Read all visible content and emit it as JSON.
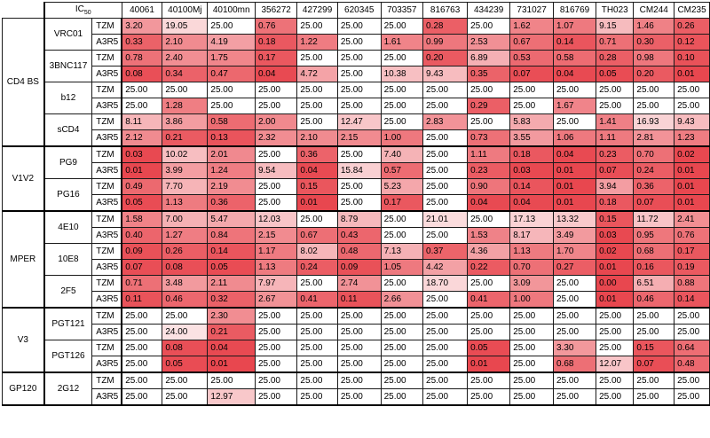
{
  "header": {
    "ic_label": "IC",
    "ic_sub": "50",
    "columns": [
      "40061",
      "40100Mj",
      "40100mn",
      "356272",
      "427299",
      "620345",
      "703357",
      "816763",
      "434239",
      "731027",
      "816769",
      "TH023",
      "CM244",
      "CM235"
    ]
  },
  "colors": {
    "low": "#e8474f",
    "high": "#ffffff",
    "max_value": 25.0
  },
  "groups": [
    {
      "name": "CD4 BS",
      "mabs": [
        {
          "name": "VRC01",
          "rows": [
            {
              "strain": "TZM",
              "values": [
                "3.20",
                "19.05",
                "25.00",
                "0.76",
                "25.00",
                "25.00",
                "25.00",
                "0.28",
                "25.00",
                "1.62",
                "1.07",
                "9.15",
                "1.46",
                "0.26"
              ]
            },
            {
              "strain": "A3R5",
              "values": [
                "0.33",
                "2.10",
                "4.19",
                "0.18",
                "1.22",
                "25.00",
                "1.61",
                "0.99",
                "2.53",
                "0.67",
                "0.14",
                "0.71",
                "0.30",
                "0.12"
              ]
            }
          ]
        },
        {
          "name": "3BNC117",
          "rows": [
            {
              "strain": "TZM",
              "values": [
                "0.78",
                "2.40",
                "1.75",
                "0.17",
                "25.00",
                "25.00",
                "25.00",
                "0.20",
                "6.89",
                "0.53",
                "0.58",
                "0.28",
                "0.98",
                "0.10"
              ]
            },
            {
              "strain": "A3R5",
              "values": [
                "0.08",
                "0.34",
                "0.47",
                "0.04",
                "4.72",
                "25.00",
                "10.38",
                "9.43",
                "0.35",
                "0.07",
                "0.04",
                "0.05",
                "0.20",
                "0.01"
              ]
            }
          ]
        },
        {
          "name": "b12",
          "rows": [
            {
              "strain": "TZM",
              "values": [
                "25.00",
                "25.00",
                "25.00",
                "25.00",
                "25.00",
                "25.00",
                "25.00",
                "25.00",
                "25.00",
                "25.00",
                "25.00",
                "25.00",
                "25.00",
                "25.00"
              ]
            },
            {
              "strain": "A3R5",
              "values": [
                "25.00",
                "1.28",
                "25.00",
                "25.00",
                "25.00",
                "25.00",
                "25.00",
                "25.00",
                "0.29",
                "25.00",
                "1.67",
                "25.00",
                "25.00",
                "25.00"
              ]
            }
          ]
        },
        {
          "name": "sCD4",
          "rows": [
            {
              "strain": "TZM",
              "values": [
                "8.11",
                "3.86",
                "0.58",
                "2.00",
                "25.00",
                "12.47",
                "25.00",
                "2.83",
                "25.00",
                "5.83",
                "25.00",
                "1.41",
                "16.93",
                "9.43"
              ]
            },
            {
              "strain": "A3R5",
              "values": [
                "2.12",
                "0.21",
                "0.13",
                "2.32",
                "2.10",
                "2.15",
                "1.00",
                "25.00",
                "0.73",
                "3.55",
                "1.06",
                "1.11",
                "2.81",
                "1.23"
              ]
            }
          ]
        }
      ]
    },
    {
      "name": "V1V2",
      "mabs": [
        {
          "name": "PG9",
          "rows": [
            {
              "strain": "TZM",
              "values": [
                "0.03",
                "10.02",
                "2.01",
                "25.00",
                "0.36",
                "25.00",
                "7.40",
                "25.00",
                "1.11",
                "0.18",
                "0.04",
                "0.23",
                "0.70",
                "0.02"
              ]
            },
            {
              "strain": "A3R5",
              "values": [
                "0.01",
                "3.99",
                "1.24",
                "9.54",
                "0.04",
                "15.84",
                "0.57",
                "25.00",
                "0.23",
                "0.03",
                "0.01",
                "0.07",
                "0.24",
                "0.01"
              ]
            }
          ]
        },
        {
          "name": "PG16",
          "rows": [
            {
              "strain": "TZM",
              "values": [
                "0.49",
                "7.70",
                "2.19",
                "25.00",
                "0.15",
                "25.00",
                "5.23",
                "25.00",
                "0.90",
                "0.14",
                "0.01",
                "3.94",
                "0.36",
                "0.01"
              ]
            },
            {
              "strain": "A3R5",
              "values": [
                "0.05",
                "1.13",
                "0.36",
                "25.00",
                "0.01",
                "25.00",
                "0.17",
                "25.00",
                "0.04",
                "0.04",
                "0.01",
                "0.18",
                "0.07",
                "0.01"
              ]
            }
          ]
        }
      ]
    },
    {
      "name": "MPER",
      "mabs": [
        {
          "name": "4E10",
          "rows": [
            {
              "strain": "TZM",
              "values": [
                "1.58",
                "7.00",
                "5.47",
                "12.03",
                "25.00",
                "8.79",
                "25.00",
                "21.01",
                "25.00",
                "17.13",
                "13.32",
                "0.15",
                "11.72",
                "2.41"
              ]
            },
            {
              "strain": "A3R5",
              "values": [
                "0.40",
                "1.27",
                "0.84",
                "2.15",
                "0.67",
                "0.43",
                "25.00",
                "25.00",
                "1.53",
                "8.17",
                "3.49",
                "0.03",
                "0.95",
                "0.76"
              ]
            }
          ]
        },
        {
          "name": "10E8",
          "rows": [
            {
              "strain": "TZM",
              "values": [
                "0.09",
                "0.26",
                "0.14",
                "1.17",
                "8.02",
                "0.48",
                "7.13",
                "0.37",
                "4.36",
                "1.13",
                "1.70",
                "0.02",
                "0.68",
                "0.17"
              ]
            },
            {
              "strain": "A3R5",
              "values": [
                "0.07",
                "0.08",
                "0.05",
                "1.13",
                "0.24",
                "0.09",
                "1.05",
                "4.42",
                "0.22",
                "0.70",
                "0.27",
                "0.01",
                "0.16",
                "0.19"
              ]
            }
          ]
        },
        {
          "name": "2F5",
          "rows": [
            {
              "strain": "TZM",
              "values": [
                "0.71",
                "3.48",
                "2.11",
                "7.97",
                "25.00",
                "2.74",
                "25.00",
                "18.70",
                "25.00",
                "3.09",
                "25.00",
                "0.00",
                "6.51",
                "0.88"
              ]
            },
            {
              "strain": "A3R5",
              "values": [
                "0.11",
                "0.46",
                "0.32",
                "2.67",
                "0.41",
                "0.11",
                "2.66",
                "25.00",
                "0.41",
                "1.00",
                "25.00",
                "0.01",
                "0.46",
                "0.14"
              ]
            }
          ]
        }
      ]
    },
    {
      "name": "V3",
      "mabs": [
        {
          "name": "PGT121",
          "rows": [
            {
              "strain": "TZM",
              "values": [
                "25.00",
                "25.00",
                "2.30",
                "25.00",
                "25.00",
                "25.00",
                "25.00",
                "25.00",
                "25.00",
                "25.00",
                "25.00",
                "25.00",
                "25.00",
                "25.00"
              ]
            },
            {
              "strain": "A3R5",
              "values": [
                "25.00",
                "24.00",
                "0.21",
                "25.00",
                "25.00",
                "25.00",
                "25.00",
                "25.00",
                "25.00",
                "25.00",
                "25.00",
                "25.00",
                "25.00",
                "25.00"
              ]
            }
          ]
        },
        {
          "name": "PGT126",
          "rows": [
            {
              "strain": "TZM",
              "values": [
                "25.00",
                "0.08",
                "0.04",
                "25.00",
                "25.00",
                "25.00",
                "25.00",
                "25.00",
                "0.05",
                "25.00",
                "3.30",
                "25.00",
                "0.15",
                "0.64"
              ]
            },
            {
              "strain": "A3R5",
              "values": [
                "25.00",
                "0.05",
                "0.01",
                "25.00",
                "25.00",
                "25.00",
                "25.00",
                "25.00",
                "0.01",
                "25.00",
                "0.68",
                "12.07",
                "0.07",
                "0.48"
              ]
            }
          ]
        }
      ]
    },
    {
      "name": "GP120",
      "mabs": [
        {
          "name": "2G12",
          "rows": [
            {
              "strain": "TZM",
              "values": [
                "25.00",
                "25.00",
                "25.00",
                "25.00",
                "25.00",
                "25.00",
                "25.00",
                "25.00",
                "25.00",
                "25.00",
                "25.00",
                "25.00",
                "25.00",
                "25.00"
              ]
            },
            {
              "strain": "A3R5",
              "values": [
                "25.00",
                "25.00",
                "12.97",
                "25.00",
                "25.00",
                "25.00",
                "25.00",
                "25.00",
                "25.00",
                "25.00",
                "25.00",
                "25.00",
                "25.00",
                "25.00"
              ]
            }
          ]
        }
      ]
    }
  ]
}
